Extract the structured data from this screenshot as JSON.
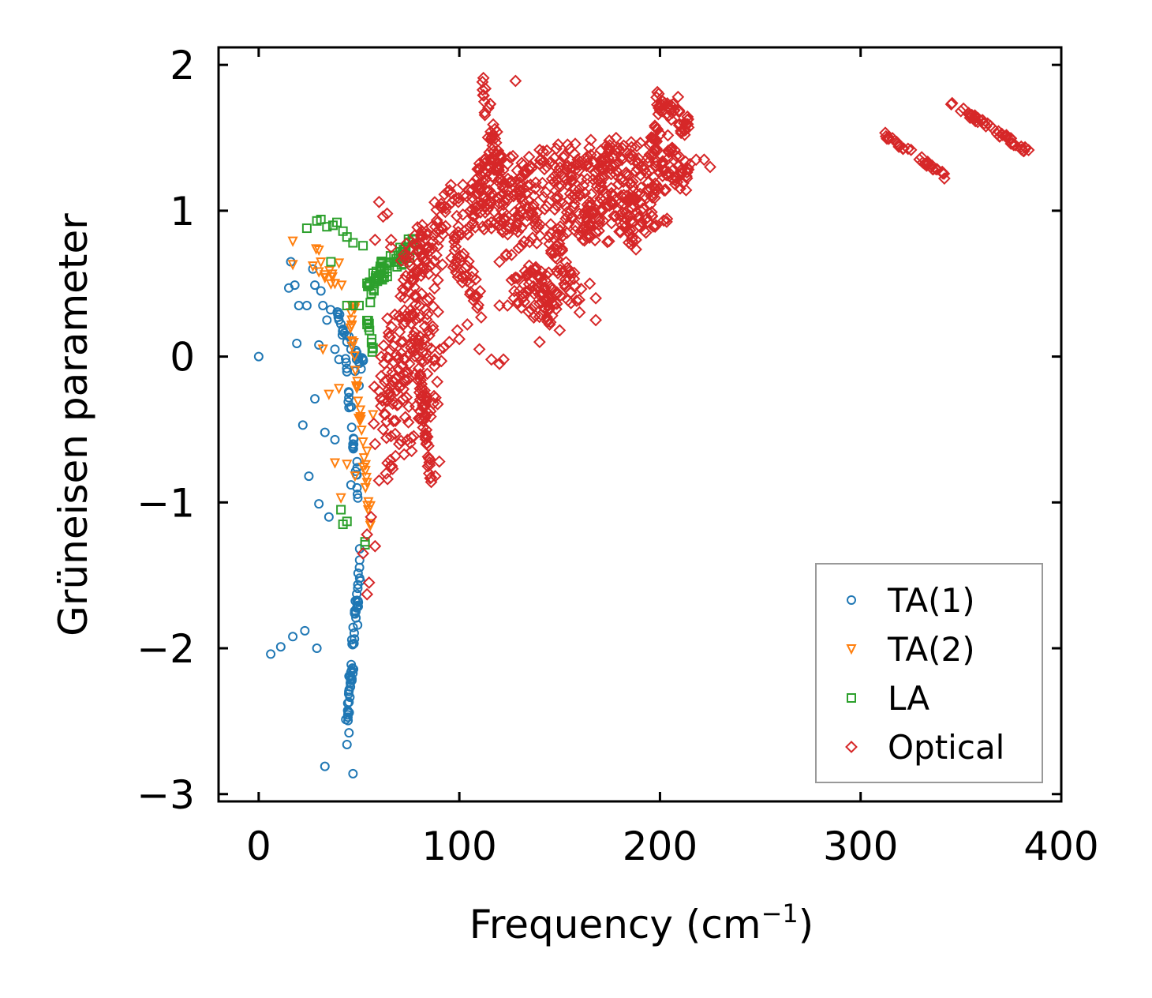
{
  "chart_data": {
    "type": "scatter",
    "title": "",
    "xlabel": "Frequency (cm",
    "xlabel_sup": "−1",
    "xlabel_close": ")",
    "ylabel": "Grüneisen parameter",
    "xlim": [
      -20,
      400
    ],
    "ylim": [
      -3.05,
      2.12
    ],
    "grid": false,
    "legend_position": "lower-right",
    "x_ticks": [
      0,
      100,
      200,
      300,
      400
    ],
    "y_ticks": [
      -3,
      -2,
      -1,
      0,
      1,
      2
    ],
    "x_tick_labels": [
      "0",
      "100",
      "200",
      "300",
      "400"
    ],
    "y_tick_labels": [
      "−3",
      "−2",
      "−1",
      "0",
      "1",
      "2"
    ],
    "series": [
      {
        "name": "TA(1)",
        "marker": "circle",
        "color": "#1f77b4",
        "points": [
          [
            0,
            0
          ],
          [
            6,
            -2.04
          ],
          [
            11,
            -1.99
          ],
          [
            17,
            -1.92
          ],
          [
            23,
            -1.88
          ],
          [
            29,
            -2.0
          ],
          [
            15,
            0.47
          ],
          [
            18,
            0.49
          ],
          [
            16,
            0.65
          ],
          [
            20,
            0.35
          ],
          [
            24,
            0.35
          ],
          [
            27,
            0.6
          ],
          [
            28,
            0.49
          ],
          [
            31,
            0.45
          ],
          [
            32,
            0.35
          ],
          [
            34,
            0.25
          ],
          [
            30,
            0.08
          ],
          [
            19,
            0.09
          ],
          [
            22,
            -0.47
          ],
          [
            28,
            -0.29
          ],
          [
            33,
            -0.52
          ],
          [
            38,
            -0.57
          ],
          [
            25,
            -0.82
          ],
          [
            30,
            -1.01
          ],
          [
            35,
            -1.1
          ],
          [
            44,
            -2.66
          ],
          [
            45,
            -2.58
          ],
          [
            33,
            -2.81
          ],
          [
            47,
            -2.86
          ],
          [
            40,
            0.25
          ],
          [
            42,
            0.18
          ],
          [
            44,
            0.1
          ],
          [
            46,
            0.05
          ],
          [
            48,
            -0.1
          ],
          [
            50,
            -0.2
          ],
          [
            45,
            -0.35
          ],
          [
            47,
            -0.6
          ],
          [
            49,
            -0.9
          ],
          [
            46,
            -0.88
          ],
          [
            52,
            -0.02
          ],
          [
            40,
            -0.02
          ],
          [
            38,
            0.05
          ]
        ],
        "segments": [
          [
            [
              36,
              0.35
            ],
            [
              52,
              -0.05
            ],
            0.06,
            22
          ],
          [
            [
              42,
              0.15
            ],
            [
              50,
              -1.0
            ],
            0.08,
            26
          ],
          [
            [
              51,
              -1.4
            ],
            [
              44,
              -2.5
            ],
            0.09,
            60
          ]
        ]
      },
      {
        "name": "TA(2)",
        "marker": "triangle-down",
        "color": "#ff7f0e",
        "points": [
          [
            17,
            0.79
          ],
          [
            17,
            0.63
          ],
          [
            27,
            0.62
          ],
          [
            30,
            0.58
          ],
          [
            33,
            0.54
          ],
          [
            38,
            0.5
          ],
          [
            40,
            0.64
          ],
          [
            46,
            0.3
          ],
          [
            32,
            0.05
          ],
          [
            35,
            -0.26
          ],
          [
            40,
            -0.22
          ],
          [
            38,
            -0.73
          ],
          [
            41,
            -0.97
          ],
          [
            44,
            -0.74
          ],
          [
            48,
            -0.82
          ],
          [
            52,
            -0.76
          ],
          [
            54,
            -0.65
          ],
          [
            57,
            -0.4
          ]
        ],
        "segments": [
          [
            [
              28,
              0.72
            ],
            [
              48,
              0.3
            ],
            0.06,
            12
          ],
          [
            [
              46,
              0.25
            ],
            [
              56,
              -1.2
            ],
            0.06,
            34
          ]
        ]
      },
      {
        "name": "LA",
        "marker": "square",
        "color": "#2ca02c",
        "points": [
          [
            24,
            0.88
          ],
          [
            29,
            0.93
          ],
          [
            31,
            0.94
          ],
          [
            34,
            0.89
          ],
          [
            37,
            0.9
          ],
          [
            39,
            0.92
          ],
          [
            42,
            0.86
          ],
          [
            44,
            0.82
          ],
          [
            47,
            0.78
          ],
          [
            52,
            0.76
          ],
          [
            36,
            0.65
          ],
          [
            44,
            0.35
          ],
          [
            50,
            0.35
          ],
          [
            41,
            -1.05
          ],
          [
            44,
            -1.13
          ],
          [
            42,
            -1.15
          ],
          [
            53,
            -1.27
          ],
          [
            53,
            -1.29
          ],
          [
            47,
            0.35
          ],
          [
            54,
            0.22
          ]
        ],
        "segments": [
          [
            [
              54,
              0.5
            ],
            [
              77,
              0.76
            ],
            0.07,
            46
          ],
          [
            [
              55,
              0.35
            ],
            [
              62,
              0.65
            ],
            0.05,
            16
          ],
          [
            [
              54,
              0.3
            ],
            [
              57,
              0.02
            ],
            0.04,
            10
          ]
        ]
      },
      {
        "name": "Optical",
        "marker": "diamond",
        "color": "#d62728",
        "points": [
          [
            60,
            1.06
          ],
          [
            62,
            0.96
          ],
          [
            64,
            0.98
          ],
          [
            58,
            0.8
          ],
          [
            66,
            0.8
          ],
          [
            66,
            0.75
          ],
          [
            58,
            -0.6
          ],
          [
            60,
            -0.85
          ],
          [
            62,
            -0.5
          ],
          [
            54,
            -1.22
          ],
          [
            56,
            -1.1
          ],
          [
            58,
            -1.3
          ],
          [
            52,
            -1.35
          ],
          [
            55,
            -1.55
          ],
          [
            54,
            -1.63
          ],
          [
            128,
            1.89
          ],
          [
            112,
            1.91
          ],
          [
            120,
            1.05
          ],
          [
            122,
            1.04
          ],
          [
            125,
            0.88
          ],
          [
            116,
            0.88
          ],
          [
            120,
            0.35
          ],
          [
            124,
            0.35
          ],
          [
            116,
            -0.02
          ],
          [
            122,
            -0.02
          ],
          [
            120,
            -0.05
          ],
          [
            140,
            0.1
          ],
          [
            145,
            0.22
          ],
          [
            150,
            0.18
          ],
          [
            165,
            0.5
          ],
          [
            168,
            0.4
          ],
          [
            168,
            0.25
          ],
          [
            188,
            0.8
          ],
          [
            193,
            0.85
          ],
          [
            198,
            0.9
          ],
          [
            225,
            1.3
          ],
          [
            222,
            1.35
          ],
          [
            215,
            1.32
          ],
          [
            218,
            1.35
          ],
          [
            205,
            1.7
          ],
          [
            209,
            1.78
          ],
          [
            212,
            1.6
          ],
          [
            120,
            0.65
          ],
          [
            90,
            -0.72
          ],
          [
            86,
            -0.86
          ],
          [
            88,
            -0.82
          ],
          [
            70,
            0.28
          ],
          [
            72,
            0.1
          ],
          [
            80,
            0.0
          ],
          [
            92,
            0.06
          ],
          [
            95,
            0.1
          ],
          [
            100,
            0.12
          ],
          [
            99,
            0.18
          ],
          [
            104,
            0.22
          ],
          [
            110,
            0.05
          ],
          [
            75,
            -0.05
          ],
          [
            78,
            -0.12
          ],
          [
            68,
            -0.53
          ],
          [
            70,
            -0.6
          ]
        ],
        "segments": [
          [
            [
              60,
              -0.2
            ],
            [
              90,
              0.6
            ],
            0.3,
            110
          ],
          [
            [
              64,
              -0.55
            ],
            [
              90,
              0.05
            ],
            0.35,
            80
          ],
          [
            [
              70,
              0.55
            ],
            [
              96,
              1.05
            ],
            0.15,
            70
          ],
          [
            [
              80,
              -0.1
            ],
            [
              86,
              -0.85
            ],
            0.09,
            40
          ],
          [
            [
              96,
              0.85
            ],
            [
              116,
              1.25
            ],
            0.2,
            60
          ],
          [
            [
              112,
              1.85
            ],
            [
              122,
              1.1
            ],
            0.14,
            50
          ],
          [
            [
              108,
              1.1
            ],
            [
              140,
              1.15
            ],
            0.25,
            90
          ],
          [
            [
              120,
              0.85
            ],
            [
              158,
              1.1
            ],
            0.22,
            80
          ],
          [
            [
              125,
              0.5
            ],
            [
              145,
              0.4
            ],
            0.18,
            50
          ],
          [
            [
              150,
              1.0
            ],
            [
              180,
              1.3
            ],
            0.25,
            90
          ],
          [
            [
              170,
              1.2
            ],
            [
              205,
              1.35
            ],
            0.2,
            90
          ],
          [
            [
              180,
              0.95
            ],
            [
              205,
              1.05
            ],
            0.15,
            50
          ],
          [
            [
              198,
              1.75
            ],
            [
              215,
              1.55
            ],
            0.08,
            40
          ],
          [
            [
              195,
              1.5
            ],
            [
              214,
              1.2
            ],
            0.12,
            50
          ],
          [
            [
              145,
              0.75
            ],
            [
              160,
              0.4
            ],
            0.14,
            40
          ],
          [
            [
              135,
              0.55
            ],
            [
              150,
              0.3
            ],
            0.12,
            35
          ],
          [
            [
              96,
              0.75
            ],
            [
              112,
              0.35
            ],
            0.12,
            35
          ],
          [
            [
              312,
              1.52
            ],
            [
              342,
              1.24
            ],
            0.02,
            34
          ],
          [
            [
              345,
              1.74
            ],
            [
              384,
              1.4
            ],
            0.02,
            44
          ],
          [
            [
              160,
              0.9
            ],
            [
              190,
              0.85
            ],
            0.12,
            45
          ],
          [
            [
              140,
              1.35
            ],
            [
              175,
              1.4
            ],
            0.1,
            45
          ]
        ]
      }
    ],
    "legend": [
      "TA(1)",
      "TA(2)",
      "LA",
      "Optical"
    ]
  }
}
